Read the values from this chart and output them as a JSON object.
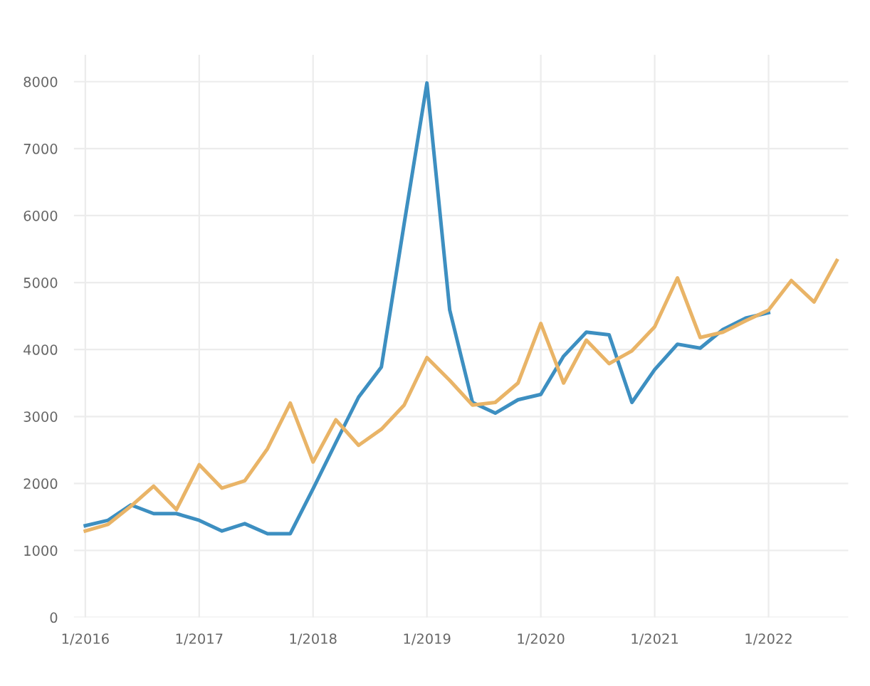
{
  "chart_data": {
    "type": "line",
    "categories": [
      "1/2016",
      null,
      null,
      null,
      null,
      "1/2017",
      null,
      null,
      null,
      null,
      "1/2018",
      null,
      null,
      null,
      null,
      "1/2019",
      null,
      null,
      null,
      null,
      "1/2020",
      null,
      null,
      null,
      null,
      "1/2021",
      null,
      null,
      null,
      null,
      "1/2022",
      null,
      null,
      null
    ],
    "series": [
      {
        "color": "#3d8fc1",
        "values": [
          1370,
          1450,
          1680,
          1550,
          1550,
          1450,
          1290,
          1400,
          1250,
          1250,
          1920,
          2610,
          3290,
          3740,
          5880,
          7980,
          4590,
          3210,
          3050,
          3250,
          3330,
          3900,
          4260,
          4220,
          3210,
          3700,
          4080,
          4020,
          4300,
          4470,
          4550,
          null,
          null,
          null
        ]
      },
      {
        "color": "#e9b467",
        "values": [
          1290,
          1390,
          1660,
          1960,
          1610,
          2280,
          1930,
          2040,
          2520,
          3200,
          2320,
          2950,
          2570,
          2810,
          3170,
          3880,
          3540,
          3170,
          3210,
          3500,
          4390,
          3500,
          4140,
          3790,
          3980,
          4340,
          5070,
          4180,
          4260,
          4430,
          4590,
          5030,
          4710,
          5330
        ]
      }
    ],
    "ylim": [
      0,
      8400
    ],
    "yticks": [
      0,
      1000,
      2000,
      3000,
      4000,
      5000,
      6000,
      7000,
      8000
    ],
    "grid": true,
    "marker": "none",
    "line_style": "solid"
  }
}
